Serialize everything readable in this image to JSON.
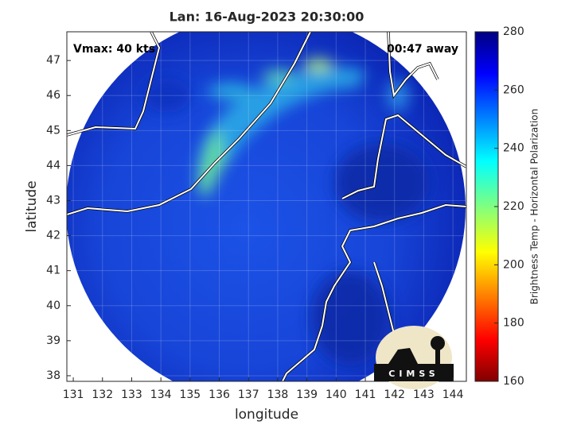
{
  "title": "Lan: 16-Aug-2023 20:30:00",
  "annotations": {
    "left": "Vmax: 40 kts",
    "right": "00:47 away"
  },
  "logo": "CIMSS",
  "map": {
    "xlabel": "longitude",
    "ylabel": "latitude",
    "xlim": [
      130.78,
      144.46
    ],
    "ylim": [
      37.84,
      47.82
    ],
    "xticks": [
      131,
      132,
      133,
      134,
      135,
      136,
      137,
      138,
      139,
      140,
      141,
      142,
      143,
      144
    ],
    "yticks": [
      38,
      39,
      40,
      41,
      42,
      43,
      44,
      45,
      46,
      47
    ]
  },
  "colorbar": {
    "label": "Brightness Temp - Horizontal Polarization",
    "lim": [
      160,
      280
    ],
    "ticks": [
      160,
      180,
      200,
      220,
      240,
      260,
      280
    ]
  }
}
